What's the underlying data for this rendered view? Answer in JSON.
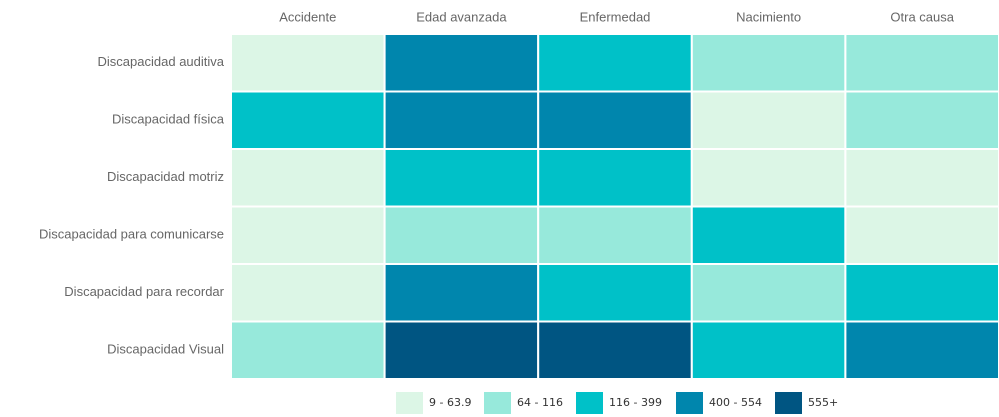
{
  "chart_data": {
    "type": "heatmap",
    "columns": [
      "Accidente",
      "Edad avanzada",
      "Enfermedad",
      "Nacimiento",
      "Otra causa"
    ],
    "rows": [
      "Discapacidad auditiva",
      "Discapacidad física",
      "Discapacidad motriz",
      "Discapacidad para comunicarse",
      "Discapacidad para recordar",
      "Discapacidad Visual"
    ],
    "values": [
      [
        40,
        480,
        250,
        90,
        95
      ],
      [
        260,
        470,
        500,
        30,
        85
      ],
      [
        35,
        220,
        240,
        30,
        25
      ],
      [
        30,
        100,
        95,
        200,
        20
      ],
      [
        45,
        460,
        270,
        90,
        230
      ],
      [
        80,
        620,
        610,
        260,
        450
      ]
    ],
    "legend": [
      {
        "label": "9 - 63.9",
        "min": 9,
        "max": 63.9,
        "color": "#dcf6e6"
      },
      {
        "label": "64 - 116",
        "min": 64,
        "max": 116,
        "color": "#97e9db"
      },
      {
        "label": "116 - 399",
        "min": 116,
        "max": 399,
        "color": "#00c1c8"
      },
      {
        "label": "400 - 554",
        "min": 400,
        "max": 554,
        "color": "#0086ad"
      },
      {
        "label": "555+",
        "min": 555,
        "color": "#005582"
      }
    ]
  }
}
